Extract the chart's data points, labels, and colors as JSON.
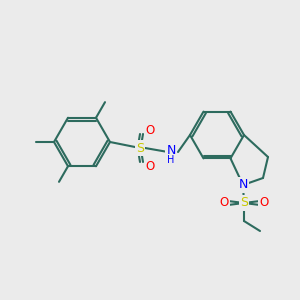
{
  "bg_color": "#ebebeb",
  "bond_color": "#2d6b5e",
  "bond_width": 1.5,
  "atom_colors": {
    "S": "#c8c800",
    "O": "#ff0000",
    "N": "#0000ff",
    "C": "#2d6b5e",
    "H": "#0000ff"
  },
  "font_size": 7.5,
  "font_size_small": 6.5
}
